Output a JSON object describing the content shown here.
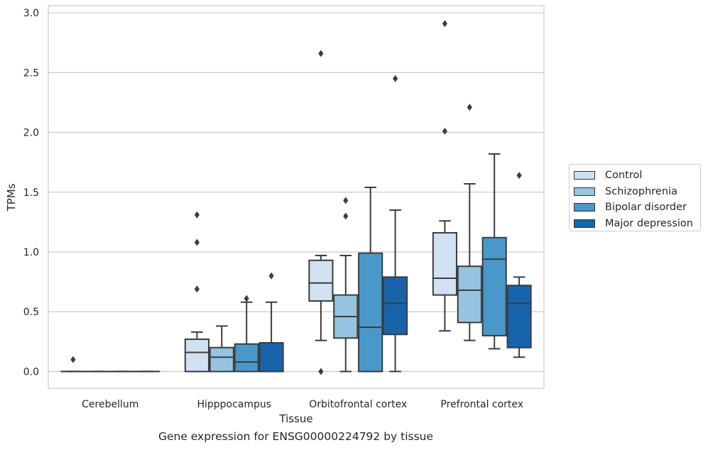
{
  "chart_data": {
    "type": "box",
    "xlabel": "Tissue",
    "ylabel": "TPMs",
    "ylim": [
      -0.14,
      3.06
    ],
    "yticks": [
      0.0,
      0.5,
      1.0,
      1.5,
      2.0,
      2.5,
      3.0
    ],
    "ytick_labels": [
      "0.0",
      "0.5",
      "1.0",
      "1.5",
      "2.0",
      "2.5",
      "3.0"
    ],
    "grid": "horizontal",
    "legend_position": "right",
    "categories": [
      "Cerebellum",
      "Hipppocampus",
      "Orbitofrontal cortex",
      "Prefrontal cortex"
    ],
    "series": [
      {
        "name": "Control",
        "color": "#d0e1f2",
        "boxes": [
          {
            "q1": 0.0,
            "median": 0.0,
            "q3": 0.0,
            "whislo": 0.0,
            "whishi": 0.0,
            "fliers": [
              0.1
            ]
          },
          {
            "q1": 0.0,
            "median": 0.16,
            "q3": 0.27,
            "whislo": 0.0,
            "whishi": 0.33,
            "fliers": [
              0.69,
              1.08,
              1.31
            ]
          },
          {
            "q1": 0.59,
            "median": 0.74,
            "q3": 0.93,
            "whislo": 0.26,
            "whishi": 0.97,
            "fliers": [
              0.0,
              2.66
            ]
          },
          {
            "q1": 0.64,
            "median": 0.78,
            "q3": 1.16,
            "whislo": 0.34,
            "whishi": 1.26,
            "fliers": [
              2.01,
              2.91
            ]
          }
        ]
      },
      {
        "name": "Schizophrenia",
        "color": "#94c4df",
        "boxes": [
          {
            "q1": 0.0,
            "median": 0.0,
            "q3": 0.0,
            "whislo": 0.0,
            "whishi": 0.0,
            "fliers": []
          },
          {
            "q1": 0.0,
            "median": 0.12,
            "q3": 0.2,
            "whislo": 0.0,
            "whishi": 0.38,
            "fliers": []
          },
          {
            "q1": 0.28,
            "median": 0.46,
            "q3": 0.64,
            "whislo": 0.0,
            "whishi": 0.97,
            "fliers": [
              1.3,
              1.43
            ]
          },
          {
            "q1": 0.41,
            "median": 0.68,
            "q3": 0.88,
            "whislo": 0.26,
            "whishi": 1.57,
            "fliers": [
              2.21
            ]
          }
        ]
      },
      {
        "name": "Bipolar disorder",
        "color": "#4a98c9",
        "boxes": [
          {
            "q1": 0.0,
            "median": 0.0,
            "q3": 0.0,
            "whislo": 0.0,
            "whishi": 0.0,
            "fliers": []
          },
          {
            "q1": 0.0,
            "median": 0.08,
            "q3": 0.23,
            "whislo": 0.0,
            "whishi": 0.58,
            "fliers": [
              0.61
            ]
          },
          {
            "q1": 0.0,
            "median": 0.37,
            "q3": 0.99,
            "whislo": 0.0,
            "whishi": 1.54,
            "fliers": []
          },
          {
            "q1": 0.3,
            "median": 0.94,
            "q3": 1.12,
            "whislo": 0.19,
            "whishi": 1.82,
            "fliers": []
          }
        ]
      },
      {
        "name": "Major depression",
        "color": "#1764ab",
        "boxes": [
          {
            "q1": 0.0,
            "median": 0.0,
            "q3": 0.0,
            "whislo": 0.0,
            "whishi": 0.0,
            "fliers": []
          },
          {
            "q1": 0.0,
            "median": 0.0,
            "q3": 0.24,
            "whislo": 0.0,
            "whishi": 0.58,
            "fliers": [
              0.8
            ]
          },
          {
            "q1": 0.31,
            "median": 0.57,
            "q3": 0.79,
            "whislo": 0.0,
            "whishi": 1.35,
            "fliers": [
              2.45
            ]
          },
          {
            "q1": 0.2,
            "median": 0.57,
            "q3": 0.72,
            "whislo": 0.12,
            "whishi": 0.79,
            "fliers": [
              1.64
            ]
          }
        ]
      }
    ],
    "caption": "Gene expression for ENSG00000224792 by tissue"
  }
}
